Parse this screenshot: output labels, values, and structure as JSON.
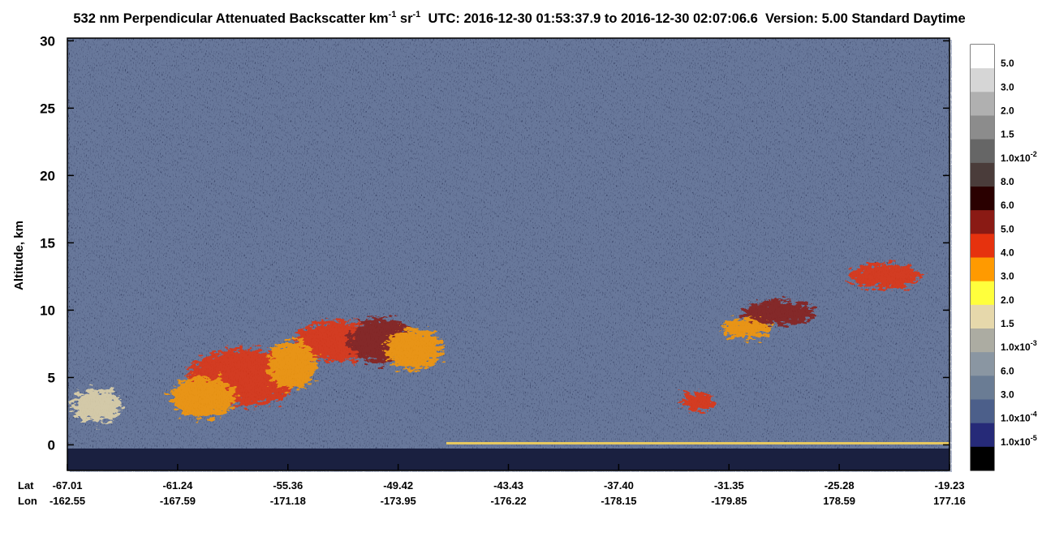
{
  "chart_data": {
    "type": "curtain",
    "title": [
      "532 nm Perpendicular Attenuated Backscatter km",
      "-1",
      " sr",
      "-1",
      "  UTC: 2016-12-30 01:53:37.9 to 2016-12-30 02:07:06.6  Version: 5.00 Standard Daytime"
    ],
    "y_label": "Altitude, km",
    "ylim": [
      -1.9,
      30.2
    ],
    "yticks": [
      0,
      5,
      10,
      15,
      20,
      25,
      30
    ],
    "x_row_labels": [
      "Lat",
      "Lon"
    ],
    "xticks": [
      {
        "lat": "-67.01",
        "lon": "-162.55"
      },
      {
        "lat": "-61.24",
        "lon": "-167.59"
      },
      {
        "lat": "-55.36",
        "lon": "-171.18"
      },
      {
        "lat": "-49.42",
        "lon": "-173.95"
      },
      {
        "lat": "-43.43",
        "lon": "-176.22"
      },
      {
        "lat": "-37.40",
        "lon": "-178.15"
      },
      {
        "lat": "-31.35",
        "lon": "-179.85"
      },
      {
        "lat": "-25.28",
        "lon": "178.59"
      },
      {
        "lat": "-19.23",
        "lon": "177.16"
      }
    ],
    "colorbar": {
      "colors": [
        "#ffffff",
        "#d6d6d6",
        "#b0b0b0",
        "#8c8c8c",
        "#666666",
        "#4a3c3a",
        "#2a0000",
        "#8a1a14",
        "#e6320e",
        "#ff9a00",
        "#ffff3c",
        "#e6d8ab",
        "#acaca2",
        "#8a96a2",
        "#6a7c94",
        "#4c5f8a",
        "#262a78",
        "#000000"
      ],
      "labels": [
        {
          "text": "5.0"
        },
        {
          "text": "3.0"
        },
        {
          "text": "2.0"
        },
        {
          "text": "1.5"
        },
        {
          "text": "1.0x10",
          "sup": "-2"
        },
        {
          "text": "8.0"
        },
        {
          "text": "6.0"
        },
        {
          "text": "5.0"
        },
        {
          "text": "4.0"
        },
        {
          "text": "3.0"
        },
        {
          "text": "2.0"
        },
        {
          "text": "1.5"
        },
        {
          "text": "1.0x10",
          "sup": "-3"
        },
        {
          "text": "6.0"
        },
        {
          "text": "3.0"
        },
        {
          "text": "1.0x10",
          "sup": "-4"
        },
        {
          "text": "1.0x10",
          "sup": "-5"
        }
      ]
    }
  }
}
